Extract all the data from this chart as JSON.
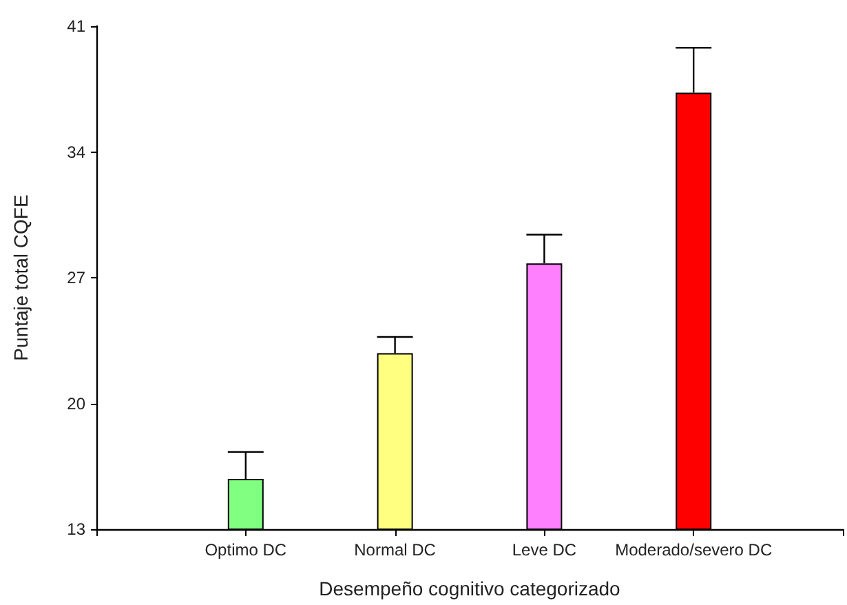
{
  "chart_data": {
    "type": "bar",
    "xlabel": "Desempeño cognitivo categorizado",
    "ylabel": "Puntaje total CQFE",
    "categories": [
      "Optimo DC",
      "Normal DC",
      "Leve DC",
      "Moderado/severo DC"
    ],
    "values": [
      15.8,
      22.8,
      27.8,
      37.3
    ],
    "colors": [
      "#80ff80",
      "#ffff80",
      "#ff80ff",
      "#ff0000"
    ],
    "errors": [
      [
        15.8,
        17.3
      ],
      [
        22.8,
        23.7
      ],
      [
        27.8,
        29.4
      ],
      [
        37.3,
        39.8
      ]
    ],
    "ylim": [
      13,
      41
    ],
    "yticks": [
      13,
      20,
      27,
      34,
      41
    ],
    "grid": false
  }
}
